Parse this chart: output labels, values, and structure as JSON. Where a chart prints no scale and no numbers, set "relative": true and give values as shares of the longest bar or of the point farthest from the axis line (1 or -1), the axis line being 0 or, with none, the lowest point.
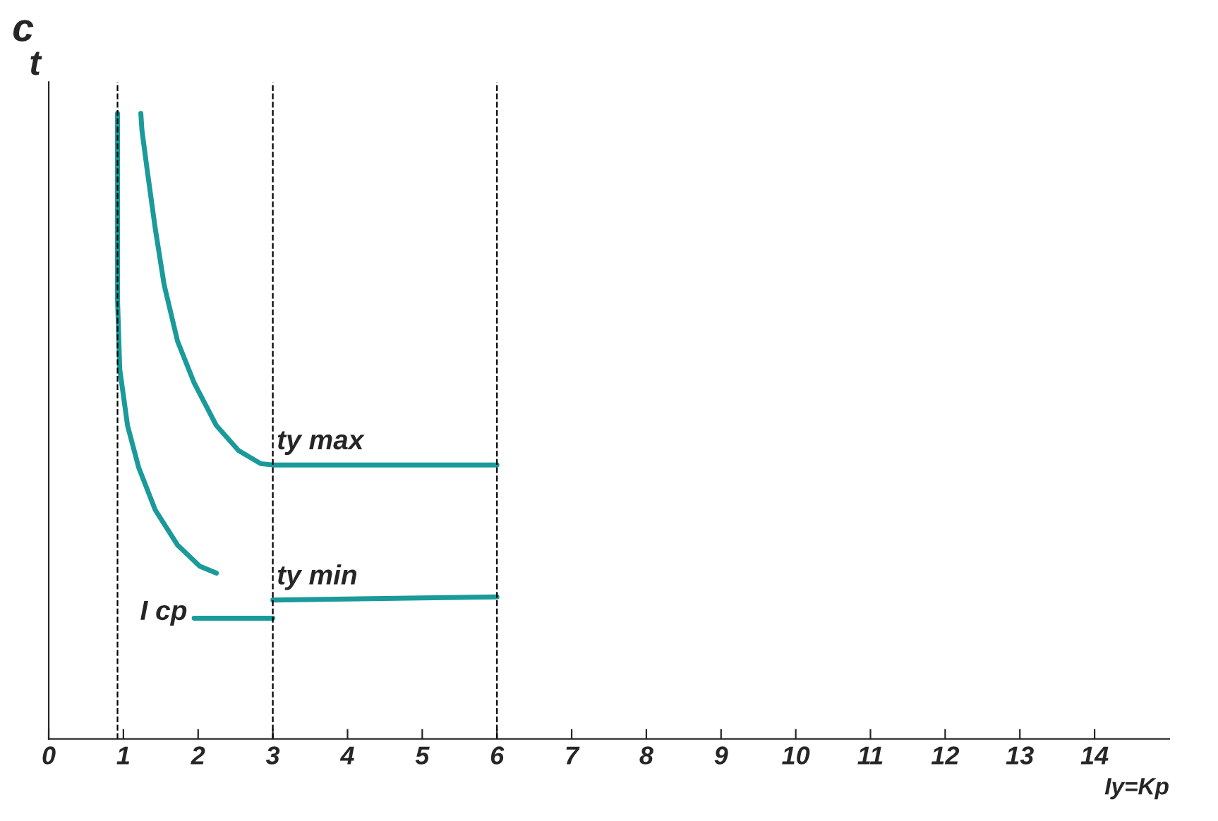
{
  "chart_data": {
    "type": "line",
    "relative": true,
    "ylabel": "t",
    "xlabel": "Iy=Kp",
    "annotations": [
      "c",
      "I cp"
    ],
    "xlim": [
      0,
      15
    ],
    "xticks": [
      0,
      1,
      2,
      3,
      4,
      5,
      6,
      7,
      8,
      9,
      10,
      11,
      12,
      13,
      14
    ],
    "series": [
      {
        "name": "ty max",
        "color": "#1a9a9a",
        "x": [
          1.233,
          1.248,
          1.322,
          1.426,
          1.545,
          1.724,
          1.947,
          2.244,
          2.541,
          2.838,
          3.0,
          6.0
        ],
        "values": [
          1.0,
          0.973,
          0.906,
          0.816,
          0.726,
          0.636,
          0.569,
          0.501,
          0.461,
          0.44,
          0.438,
          0.438
        ]
      },
      {
        "color": "#1a9a9a",
        "x": [
          0.921,
          0.921,
          0.951,
          1.055,
          1.204,
          1.426,
          1.724,
          2.021,
          2.244
        ],
        "values": [
          1.0,
          0.703,
          0.591,
          0.501,
          0.434,
          0.366,
          0.31,
          0.276,
          0.265
        ]
      },
      {
        "color": "#1a9a9a",
        "x": [
          1.947,
          3.0
        ],
        "values": [
          0.193,
          0.193
        ]
      },
      {
        "name": "ty min",
        "color": "#1a9a9a",
        "x": [
          3.0,
          6.0
        ],
        "values": [
          0.222,
          0.227
        ]
      }
    ],
    "ref_lines": [
      {
        "axis": "x",
        "value": 0.921,
        "color": "#000000",
        "line_style": "dashed"
      },
      {
        "axis": "x",
        "value": 3.0,
        "color": "#000000",
        "line_style": "dashed"
      },
      {
        "axis": "x",
        "value": 6.0,
        "color": "#000000",
        "line_style": "dashed"
      }
    ],
    "grid": false,
    "legend": false,
    "marker": "none",
    "line_style": "solid"
  }
}
